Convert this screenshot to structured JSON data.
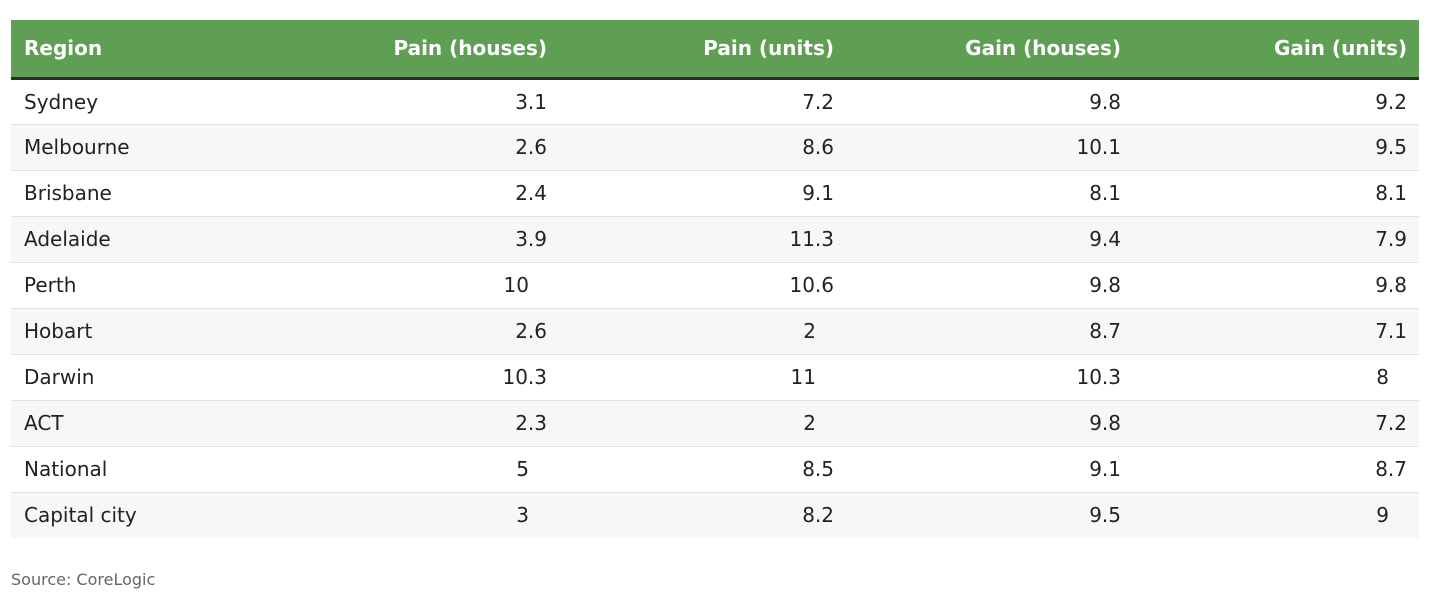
{
  "chart_data": {
    "type": "table",
    "columns": [
      "Region",
      "Pain (houses)",
      "Pain (units)",
      "Gain (houses)",
      "Gain (units)"
    ],
    "rows": [
      {
        "region": "Sydney",
        "values": [
          "3.1",
          "7.2",
          "9.8",
          "9.2"
        ]
      },
      {
        "region": "Melbourne",
        "values": [
          "2.6",
          "8.6",
          "10.1",
          "9.5"
        ]
      },
      {
        "region": "Brisbane",
        "values": [
          "2.4",
          "9.1",
          "8.1",
          "8.1"
        ]
      },
      {
        "region": "Adelaide",
        "values": [
          "3.9",
          "11.3",
          "9.4",
          "7.9"
        ]
      },
      {
        "region": "Perth",
        "values": [
          "10",
          "10.6",
          "9.8",
          "9.8"
        ]
      },
      {
        "region": "Hobart",
        "values": [
          "2.6",
          "2",
          "8.7",
          "7.1"
        ]
      },
      {
        "region": "Darwin",
        "values": [
          "10.3",
          "11",
          "10.3",
          "8"
        ]
      },
      {
        "region": "ACT",
        "values": [
          "2.3",
          "2",
          "9.8",
          "7.2"
        ]
      },
      {
        "region": "National",
        "values": [
          "5",
          "8.5",
          "9.1",
          "8.7"
        ]
      },
      {
        "region": "Capital city",
        "values": [
          "3",
          "8.2",
          "9.5",
          "9"
        ]
      }
    ]
  },
  "colors": {
    "header_bg": "#5e9f53",
    "header_text": "#ffffff",
    "stripe": "#f7f7f7"
  },
  "source": "Source: CoreLogic"
}
